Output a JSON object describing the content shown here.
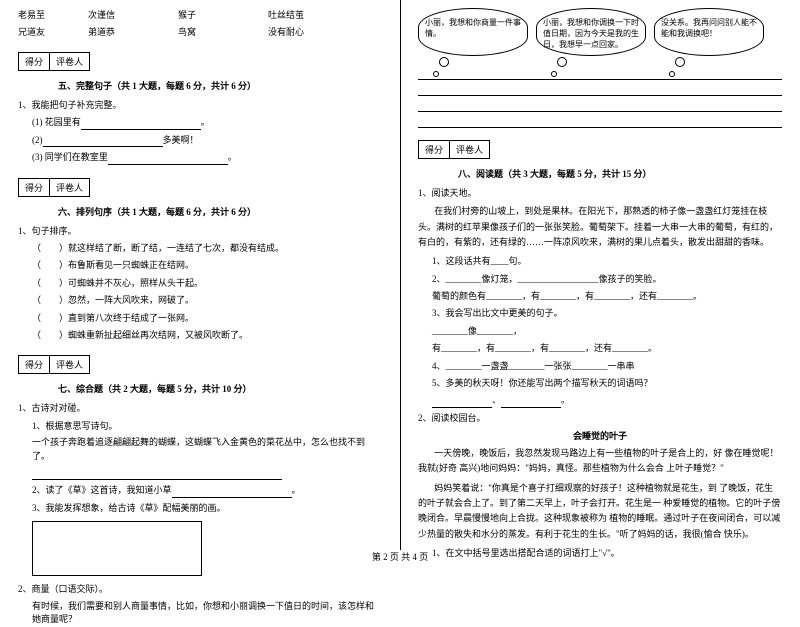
{
  "words": {
    "row1": [
      "老易至",
      "次谨信",
      "猴子",
      "吐丝结茧"
    ],
    "row2": [
      "兄道友",
      "弟道恭",
      "鸟窝",
      "没有耐心"
    ]
  },
  "scorebox": {
    "c1": "得分",
    "c2": "评卷人"
  },
  "sec5": {
    "title": "五、完整句子（共 1 大题，每题 6 分，共计 6 分）",
    "q1": "1、我能把句子补充完整。",
    "a": "(1) 花园里有",
    "b": "(2)",
    "b_end": "多美啊！",
    "c": "(3) 同学们在教室里"
  },
  "sec6": {
    "title": "六、排列句序（共 1 大题，每题 6 分，共计 6 分）",
    "q1": "1、句子排序。",
    "items": [
      "就这样结了断，断了结，一连结了七次，都没有结成。",
      "布鲁斯看见一只蜘蛛正在结网。",
      "可蜘蛛并不灰心，照样从头干起。",
      "忽然，一阵大风吹来，网破了。",
      "直到第八次终于结成了一张网。",
      "蜘蛛重新扯起细丝再次结网，又被风吹断了。"
    ]
  },
  "sec7": {
    "title": "七、综合题（共 2 大题，每题 5 分，共计 10 分）",
    "q1": "1、古诗对对碰。",
    "q1_1": "1、根据意思写诗句。",
    "q1_1t": "一个孩子奔跑着追逐翩翩起舞的蝴蝶，这蝴蝶飞入金黄色的菜花丛中，怎么也找不到了。",
    "q1_2": "2、读了《草》这首诗，我知道小草",
    "q1_3": "3、我能发挥想象，给古诗《草》配幅美丽的画。",
    "q2": "2、商量（口语交际）。",
    "q2t": "有时候，我们需要和别人商量事情，比如，你想和小丽调换一下值日的时间，该怎样和她商量呢？"
  },
  "bubbles": {
    "b1": "小丽，我想和你商量一件事情。",
    "b2": "小丽，我想和你调换一下时值日期，因为今天是我的生日，我想早一点回家。",
    "b3": "没关系。我再问问别人能不能和我调换吧！"
  },
  "sec8": {
    "title": "八、阅读题（共 3 大题，每题 5 分，共计 15 分）",
    "q1": "1、阅读天地。",
    "p1": "在我们村旁的山坡上，到处是果林。在阳光下，那熟透的柿子像一盏盏红灯笼挂在枝头。满树的红苹果像孩子们的一张张笑脸。葡萄架下。挂着一大串一大串的葡萄，有红的，有白的，有紫的，还有绿的……一阵凉风吹来，满树的果儿点着头，散发出甜甜的香味。",
    "i1": "1、这段话共有____句。",
    "i2": "2、________像灯笼，__________________像孩子的笑脸。",
    "i3": "葡萄的颜色有________，有________，有________，还有________。",
    "i4": "3、我会写出比文中更美的句子。",
    "i4a": "________像________，",
    "i4b": "有________，有________，有________，还有________。",
    "i5": "4、________一盏盏________一张张________一串串",
    "i6": "5、多美的秋天呀！你还能写出两个描写秋天的词语吗？",
    "q2": "2、阅读校园台。",
    "title2": "会睡觉的叶子",
    "p2a": "一天傍晚，晚饭后，我忽然发现马路边上有一些植物的叶子是合上的，好 像在睡觉呢！我就(好奇 高兴)地问妈妈：\"妈妈，真怪。那些植物为什么会合 上叶子睡觉？\"",
    "p2b": "妈妈笑着说：\"你真是个喜子打细观察的好孩子！这种植物就是花生，到 了晚饭，花生的叶子就会合上了。到了第二天早上，叶子会打开。花生是一 种爱睡觉的植物。它的叶子傍晚闭合。早晨慢慢地向上合拢。这种现象被称为 植物的睡眠。通过叶子在夜间闭合，可以减少热量的散失和水分的蒸发。有利于花生的生长。\"听了妈妈的话，我很(愉合 快乐)。",
    "i7": "1、在文中括号里选出搭配合适的词语打上\"√\"。"
  },
  "footer": "第 2 页 共 4 页"
}
